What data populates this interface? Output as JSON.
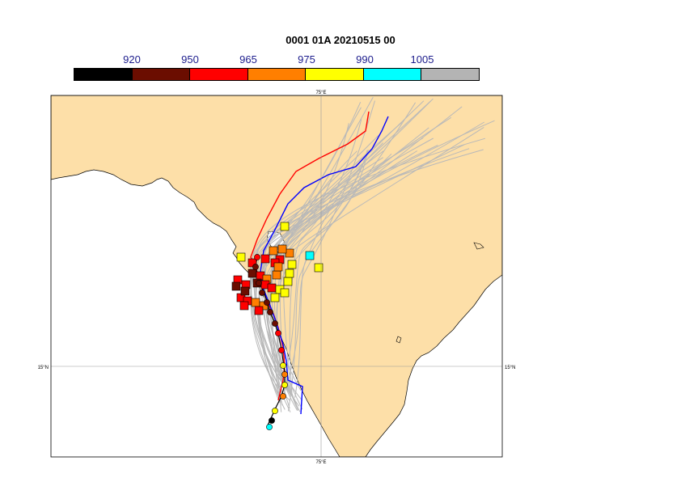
{
  "title": "0001 01A 20210515 00",
  "colorbar": {
    "labels": [
      "920",
      "950",
      "965",
      "975",
      "990",
      "1005"
    ],
    "colors": [
      "#000000",
      "#6b0d00",
      "#ff0000",
      "#ff7f00",
      "#ffff00",
      "#00ffff",
      "#b4b4b4"
    ]
  },
  "axes": {
    "lon_top": "75°E",
    "lon_bottom": "75°E",
    "lat_left": "15°N",
    "lat_right": "15°N"
  },
  "colors": {
    "land": "#fddfa8",
    "sea": "#ffffff",
    "ensemble_track": "#b9b9b9",
    "track_red": "#ff0000",
    "track_blue": "#0000ff",
    "track_black": "#000000"
  }
}
